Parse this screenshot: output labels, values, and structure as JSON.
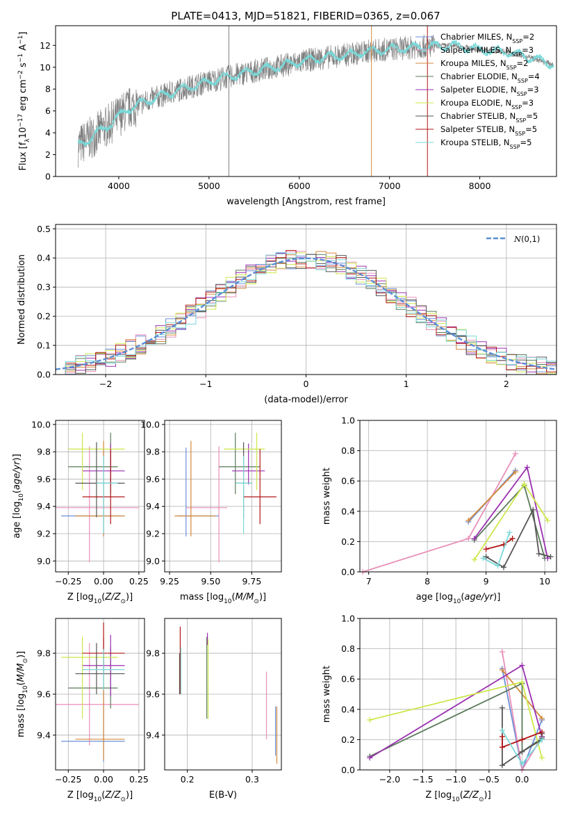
{
  "title": "PLATE=0413, MJD=51821, FIBERID=0365, z=0.067",
  "models": [
    {
      "name": "Chabrier MILES",
      "nssp": "2",
      "color": "#6a8fd8"
    },
    {
      "name": "Salpeter MILES",
      "nssp": "3",
      "color": "#e88fb8"
    },
    {
      "name": "Kroupa MILES",
      "nssp": "2",
      "color": "#d4883a"
    },
    {
      "name": "Chabrier ELODIE",
      "nssp": "4",
      "color": "#5a7a5a"
    },
    {
      "name": "Salpeter ELODIE",
      "nssp": "3",
      "color": "#9a2fb0"
    },
    {
      "name": "Kroupa ELODIE",
      "nssp": "3",
      "color": "#cde84a"
    },
    {
      "name": "Chabrier STELIB",
      "nssp": "5",
      "color": "#555555"
    },
    {
      "name": "Salpeter STELIB",
      "nssp": "5",
      "color": "#b01515"
    },
    {
      "name": "Kroupa STELIB",
      "nssp": "5",
      "color": "#7ad8d8"
    }
  ],
  "chart_data": [
    {
      "id": "spectrum",
      "type": "line",
      "xlabel": "wavelength [Angstrom, rest frame]",
      "ylabel": "Flux [f_λ10^-17 erg cm^-2 s^-1 A^-1]",
      "xlim": [
        3300,
        8850
      ],
      "ylim": [
        0,
        13.8
      ],
      "xticks": [
        4000,
        5000,
        6000,
        7000,
        8000
      ],
      "yticks": [
        0,
        2,
        4,
        6,
        8,
        10,
        12
      ],
      "legend_position": "right",
      "observed_color": "#7f7f7f",
      "model_color": "#7ad8d8",
      "continuum": {
        "x": [
          3550,
          3700,
          3900,
          4100,
          4400,
          4700,
          5000,
          5300,
          5600,
          5900,
          6200,
          6500,
          6800,
          7100,
          7400,
          7700,
          8000,
          8300,
          8600,
          8820
        ],
        "y": [
          2.8,
          3.6,
          4.8,
          6.2,
          7.2,
          8.0,
          8.7,
          9.3,
          9.8,
          10.3,
          10.8,
          11.1,
          11.5,
          11.7,
          11.9,
          12.0,
          11.6,
          11.4,
          10.8,
          10.2
        ]
      },
      "noise_amplitude": 1.1
    },
    {
      "id": "residuals",
      "type": "histogram",
      "xlabel": "(data-model)/error",
      "ylabel": "Normed distribution",
      "xlim": [
        -2.5,
        2.5
      ],
      "ylim": [
        0,
        0.515
      ],
      "xticks": [
        -2,
        -1,
        0,
        1,
        2
      ],
      "yticks": [
        0.0,
        0.1,
        0.2,
        0.3,
        0.4,
        0.5
      ],
      "grid": true,
      "legend": "N(0,1)",
      "legend_position": "top-right",
      "bin_width": 0.1,
      "normal_color": "#5b8ed6"
    },
    {
      "id": "age-vs-Z",
      "type": "errorbar",
      "xlabel": "Z [log10(Z/Z_sun)]",
      "ylabel": "age  [log10(age/yr)]",
      "xlim": [
        -0.34,
        0.29
      ],
      "ylim": [
        8.92,
        10.03
      ],
      "xticks": [
        -0.25,
        0.0,
        0.25
      ],
      "yticks": [
        9.0,
        9.2,
        9.4,
        9.6,
        9.8,
        10.0
      ],
      "grid": true,
      "points": [
        {
          "x": 0.0,
          "y": 9.33,
          "ex": [
            0.3,
            0.15
          ],
          "ey": [
            0.15,
            0.5
          ]
        },
        {
          "x": -0.1,
          "y": 9.39,
          "ex": [
            0.4,
            0.35
          ],
          "ey": [
            0.4,
            0.45
          ]
        },
        {
          "x": 0.0,
          "y": 9.33,
          "ex": [
            0.2,
            0.15
          ],
          "ey": [
            0.15,
            0.55
          ]
        },
        {
          "x": 0.05,
          "y": 9.69,
          "ex": [
            0.3,
            0.05
          ],
          "ey": [
            0.2,
            0.25
          ]
        },
        {
          "x": 0.05,
          "y": 9.66,
          "ex": [
            0.2,
            0.1
          ],
          "ey": [
            0.1,
            0.2
          ]
        },
        {
          "x": -0.15,
          "y": 9.82,
          "ex": [
            0.1,
            0.3
          ],
          "ey": [
            0.3,
            0.12
          ]
        },
        {
          "x": -0.05,
          "y": 9.57,
          "ex": [
            0.15,
            0.2
          ],
          "ey": [
            0.25,
            0.3
          ]
        },
        {
          "x": 0.05,
          "y": 9.47,
          "ex": [
            0.2,
            0.1
          ],
          "ey": [
            0.2,
            0.35
          ]
        },
        {
          "x": 0.0,
          "y": 9.57,
          "ex": [
            0.05,
            0.1
          ],
          "ey": [
            0.37,
            0.2
          ]
        }
      ]
    },
    {
      "id": "age-vs-mass",
      "type": "errorbar",
      "xlabel": "mass [log10(M/M_sun)]",
      "ylabel": "",
      "xlim": [
        9.22,
        9.93
      ],
      "ylim": [
        8.92,
        10.03
      ],
      "xticks": [
        9.25,
        9.5,
        9.75
      ],
      "yticks": [
        9.0,
        9.2,
        9.4,
        9.6,
        9.8,
        10.0
      ],
      "grid": true,
      "points": [
        {
          "x": 9.35,
          "y": 9.33,
          "ex": [
            0.05,
            0.2
          ],
          "ey": [
            0.15,
            0.5
          ]
        },
        {
          "x": 9.55,
          "y": 9.39,
          "ex": [
            0.2,
            0.05
          ],
          "ey": [
            0.4,
            0.45
          ]
        },
        {
          "x": 9.38,
          "y": 9.33,
          "ex": [
            0.1,
            0.15
          ],
          "ey": [
            0.15,
            0.55
          ]
        },
        {
          "x": 9.65,
          "y": 9.69,
          "ex": [
            0.1,
            0.15
          ],
          "ey": [
            0.2,
            0.25
          ]
        },
        {
          "x": 9.73,
          "y": 9.66,
          "ex": [
            0.1,
            0.1
          ],
          "ey": [
            0.1,
            0.2
          ]
        },
        {
          "x": 9.78,
          "y": 9.82,
          "ex": [
            0.2,
            0.05
          ],
          "ey": [
            0.3,
            0.12
          ]
        },
        {
          "x": 9.7,
          "y": 9.57,
          "ex": [
            0.05,
            0.05
          ],
          "ey": [
            0.25,
            0.3
          ]
        },
        {
          "x": 9.8,
          "y": 9.47,
          "ex": [
            0.1,
            0.1
          ],
          "ey": [
            0.2,
            0.35
          ]
        },
        {
          "x": 9.7,
          "y": 9.57,
          "ex": [
            0.05,
            0.05
          ],
          "ey": [
            0.37,
            0.2
          ]
        }
      ]
    },
    {
      "id": "weight-vs-age",
      "type": "line",
      "xlabel": "age  [log10(age/yr)]",
      "ylabel": "mass weight",
      "xlim": [
        6.85,
        10.2
      ],
      "ylim": [
        0,
        1.0
      ],
      "xticks": [
        7,
        8,
        9,
        10
      ],
      "yticks": [
        0.0,
        0.2,
        0.4,
        0.6,
        0.8,
        1.0
      ],
      "grid": true,
      "series": [
        {
          "x": [
            8.7,
            9.5
          ],
          "y": [
            0.33,
            0.67
          ]
        },
        {
          "x": [
            6.9,
            8.7,
            9.5
          ],
          "y": [
            0.0,
            0.22,
            0.78
          ]
        },
        {
          "x": [
            8.7,
            9.5
          ],
          "y": [
            0.34,
            0.66
          ]
        },
        {
          "x": [
            8.8,
            9.65,
            10.0
          ],
          "y": [
            0.21,
            0.57,
            0.09
          ]
        },
        {
          "x": [
            8.8,
            9.7,
            10.05
          ],
          "y": [
            0.22,
            0.69,
            0.09
          ]
        },
        {
          "x": [
            8.8,
            9.65,
            10.05
          ],
          "y": [
            0.08,
            0.58,
            0.34
          ]
        },
        {
          "x": [
            9.0,
            9.3,
            9.8,
            9.9,
            10.1
          ],
          "y": [
            0.1,
            0.03,
            0.41,
            0.12,
            0.1
          ]
        },
        {
          "x": [
            9.0,
            9.3,
            9.45
          ],
          "y": [
            0.15,
            0.18,
            0.22
          ]
        },
        {
          "x": [
            8.95,
            9.2,
            9.4
          ],
          "y": [
            0.09,
            0.04,
            0.26
          ]
        }
      ]
    },
    {
      "id": "mass-vs-Z",
      "type": "errorbar",
      "xlabel": "Z [log10(Z/Z_sun)]",
      "ylabel": "mass [log10(M/M_sun)]",
      "xlim": [
        -0.34,
        0.29
      ],
      "ylim": [
        9.23,
        9.97
      ],
      "xticks": [
        -0.25,
        0.0,
        0.25
      ],
      "yticks": [
        9.4,
        9.6,
        9.8
      ],
      "grid": true,
      "points": [
        {
          "x": 0.0,
          "y": 9.37,
          "ex": [
            0.3,
            0.15
          ],
          "ey": [
            0.1,
            0.5
          ]
        },
        {
          "x": -0.1,
          "y": 9.55,
          "ex": [
            0.45,
            0.35
          ],
          "ey": [
            0.2,
            0.3
          ]
        },
        {
          "x": 0.0,
          "y": 9.38,
          "ex": [
            0.2,
            0.15
          ],
          "ey": [
            0.1,
            0.5
          ]
        },
        {
          "x": 0.05,
          "y": 9.63,
          "ex": [
            0.3,
            0.05
          ],
          "ey": [
            0.1,
            0.2
          ]
        },
        {
          "x": 0.05,
          "y": 9.74,
          "ex": [
            0.2,
            0.1
          ],
          "ey": [
            0.15,
            0.15
          ]
        },
        {
          "x": -0.15,
          "y": 9.78,
          "ex": [
            0.15,
            0.25
          ],
          "ey": [
            0.3,
            0.1
          ]
        },
        {
          "x": -0.05,
          "y": 9.7,
          "ex": [
            0.15,
            0.2
          ],
          "ey": [
            0.1,
            0.15
          ]
        },
        {
          "x": 0.0,
          "y": 9.8,
          "ex": [
            0.15,
            0.15
          ],
          "ey": [
            0.1,
            0.15
          ]
        },
        {
          "x": 0.0,
          "y": 9.72,
          "ex": [
            0.15,
            0.15
          ],
          "ey": [
            0.1,
            0.1
          ]
        }
      ]
    },
    {
      "id": "mass-vs-ebv",
      "type": "errorbar",
      "xlabel": "E(B-V)",
      "ylabel": "",
      "xlim": [
        0.165,
        0.345
      ],
      "ylim": [
        9.23,
        9.97
      ],
      "xticks": [
        0.2,
        0.3
      ],
      "yticks": [
        9.4,
        9.6,
        9.8
      ],
      "grid": true,
      "points": [
        {
          "x": 0.336,
          "y": 9.42,
          "ex": [
            0,
            0
          ],
          "ey": [
            0.12,
            0.12
          ]
        },
        {
          "x": 0.322,
          "y": 9.55,
          "ex": [
            0,
            0
          ],
          "ey": [
            0.17,
            0.16
          ]
        },
        {
          "x": 0.338,
          "y": 9.4,
          "ex": [
            0,
            0
          ],
          "ey": [
            0.14,
            0.14
          ]
        },
        {
          "x": 0.23,
          "y": 9.68,
          "ex": [
            0,
            0
          ],
          "ey": [
            0.2,
            0.2
          ]
        },
        {
          "x": 0.231,
          "y": 9.87,
          "ex": [
            0,
            0
          ],
          "ey": [
            0.03,
            0.03
          ]
        },
        {
          "x": 0.232,
          "y": 9.7,
          "ex": [
            0,
            0
          ],
          "ey": [
            0.22,
            0.17
          ]
        },
        {
          "x": 0.188,
          "y": 9.7,
          "ex": [
            0,
            0
          ],
          "ey": [
            0.1,
            0.1
          ]
        },
        {
          "x": 0.189,
          "y": 9.8,
          "ex": [
            0,
            0
          ],
          "ey": [
            0.2,
            0.13
          ]
        },
        {
          "x": 0.19,
          "y": 9.7,
          "ex": [
            0,
            0
          ],
          "ey": [
            0.1,
            0.13
          ]
        }
      ]
    },
    {
      "id": "weight-vs-Z",
      "type": "line",
      "xlabel": "Z [log10(Z/Z_sun)]",
      "ylabel": "mass weight",
      "xlim": [
        -2.45,
        0.52
      ],
      "ylim": [
        0,
        1.0
      ],
      "xticks": [
        -2.0,
        -1.5,
        -1.0,
        -0.5,
        0.0
      ],
      "yticks": [
        0.0,
        0.2,
        0.4,
        0.6,
        0.8,
        1.0
      ],
      "grid": true,
      "series": [
        {
          "x": [
            -0.3,
            0.0,
            0.3
          ],
          "y": [
            0.67,
            0.0,
            0.33
          ]
        },
        {
          "x": [
            -0.3,
            0.0,
            0.3
          ],
          "y": [
            0.78,
            0.0,
            0.22
          ]
        },
        {
          "x": [
            -0.3,
            0.3
          ],
          "y": [
            0.66,
            0.34
          ]
        },
        {
          "x": [
            -2.3,
            0.0,
            0.0,
            0.3
          ],
          "y": [
            0.09,
            0.57,
            0.12,
            0.21
          ]
        },
        {
          "x": [
            -2.3,
            0.0,
            0.3
          ],
          "y": [
            0.08,
            0.69,
            0.22
          ]
        },
        {
          "x": [
            -2.3,
            0.0,
            0.3
          ],
          "y": [
            0.33,
            0.58,
            0.08
          ]
        },
        {
          "x": [
            -0.3,
            -0.3,
            0.0,
            0.3,
            0.3
          ],
          "y": [
            0.41,
            0.03,
            0.12,
            0.2,
            0.24
          ]
        },
        {
          "x": [
            -0.3,
            -0.3,
            0.0,
            0.3
          ],
          "y": [
            0.22,
            0.15,
            0.2,
            0.25
          ]
        },
        {
          "x": [
            -0.3,
            0.0,
            0.3
          ],
          "y": [
            0.26,
            0.04,
            0.2
          ]
        }
      ]
    }
  ]
}
